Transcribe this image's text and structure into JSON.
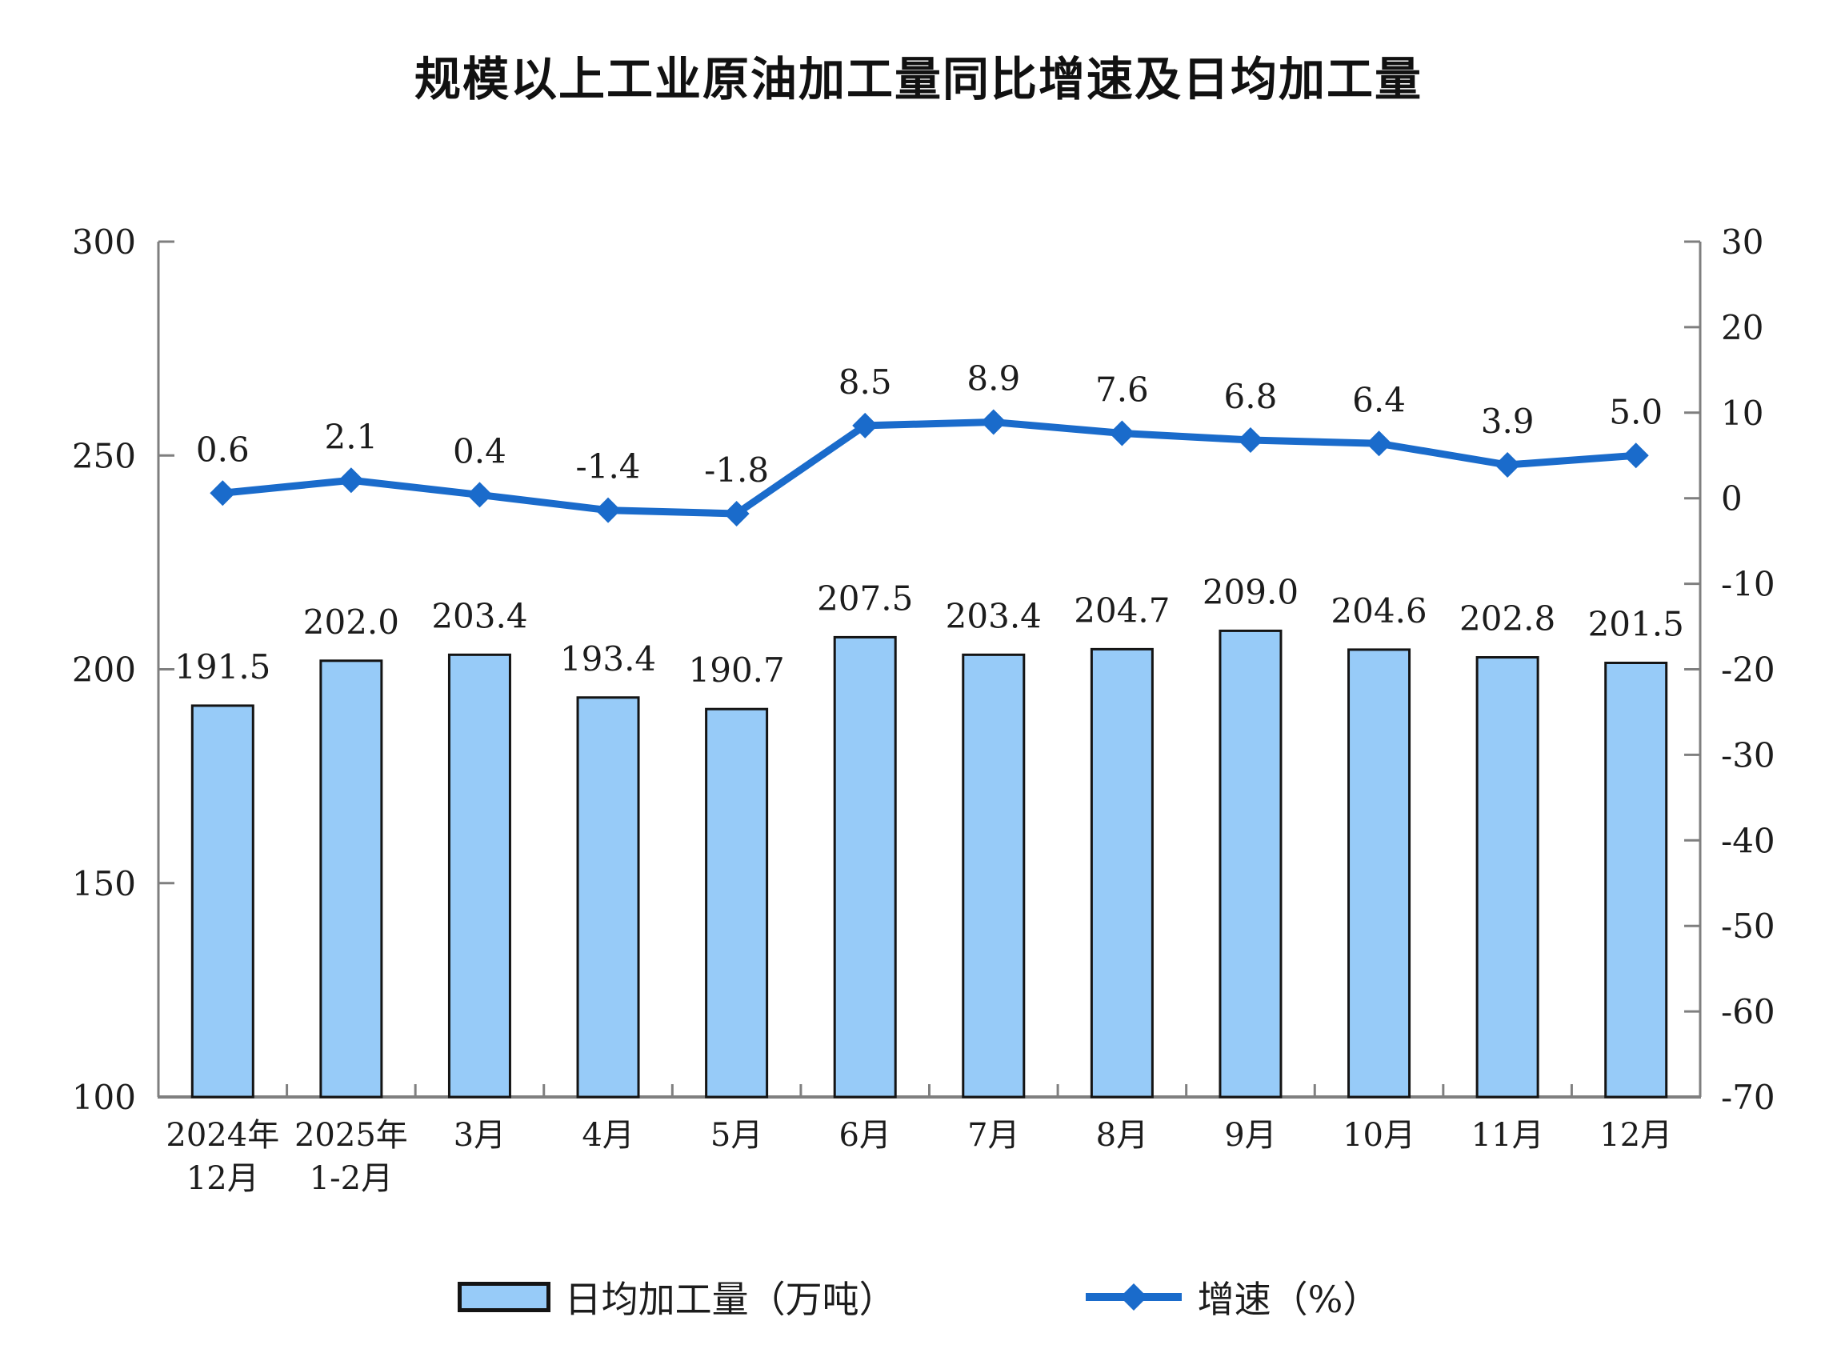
{
  "title": "规模以上工业原油加工量同比增速及日均加工量",
  "colors": {
    "bar_fill": "#97CBF8",
    "bar_stroke": "#141414",
    "line": "#1A6BCB",
    "axis": "#7F7F7F",
    "label_text": "#1C1C1C",
    "background": "#FFFFFF"
  },
  "chart_data": {
    "type": "bar+line combo",
    "categories": [
      "2024年\n12月",
      "2025年\n1-2月",
      "3月",
      "4月",
      "5月",
      "6月",
      "7月",
      "8月",
      "9月",
      "10月",
      "11月",
      "12月"
    ],
    "series": [
      {
        "name": "日均加工量（万吨）",
        "type": "bar",
        "axis": "left",
        "values": [
          191.5,
          202.0,
          203.4,
          193.4,
          190.7,
          207.5,
          203.4,
          204.7,
          209.0,
          204.6,
          202.8,
          201.5
        ]
      },
      {
        "name": "增速（%）",
        "type": "line",
        "axis": "right",
        "values": [
          0.6,
          2.1,
          0.4,
          -1.4,
          -1.8,
          8.5,
          8.9,
          7.6,
          6.8,
          6.4,
          3.9,
          5.0
        ]
      }
    ],
    "left_axis": {
      "min": 100,
      "max": 300,
      "ticks": [
        300,
        250,
        200,
        150,
        100
      ]
    },
    "right_axis": {
      "min": -70,
      "max": 30,
      "ticks": [
        30,
        20,
        10,
        0,
        -10,
        -20,
        -30,
        -40,
        -50,
        -60,
        -70
      ]
    },
    "legend_position": "bottom",
    "grid": "off",
    "data_labels": "on"
  }
}
